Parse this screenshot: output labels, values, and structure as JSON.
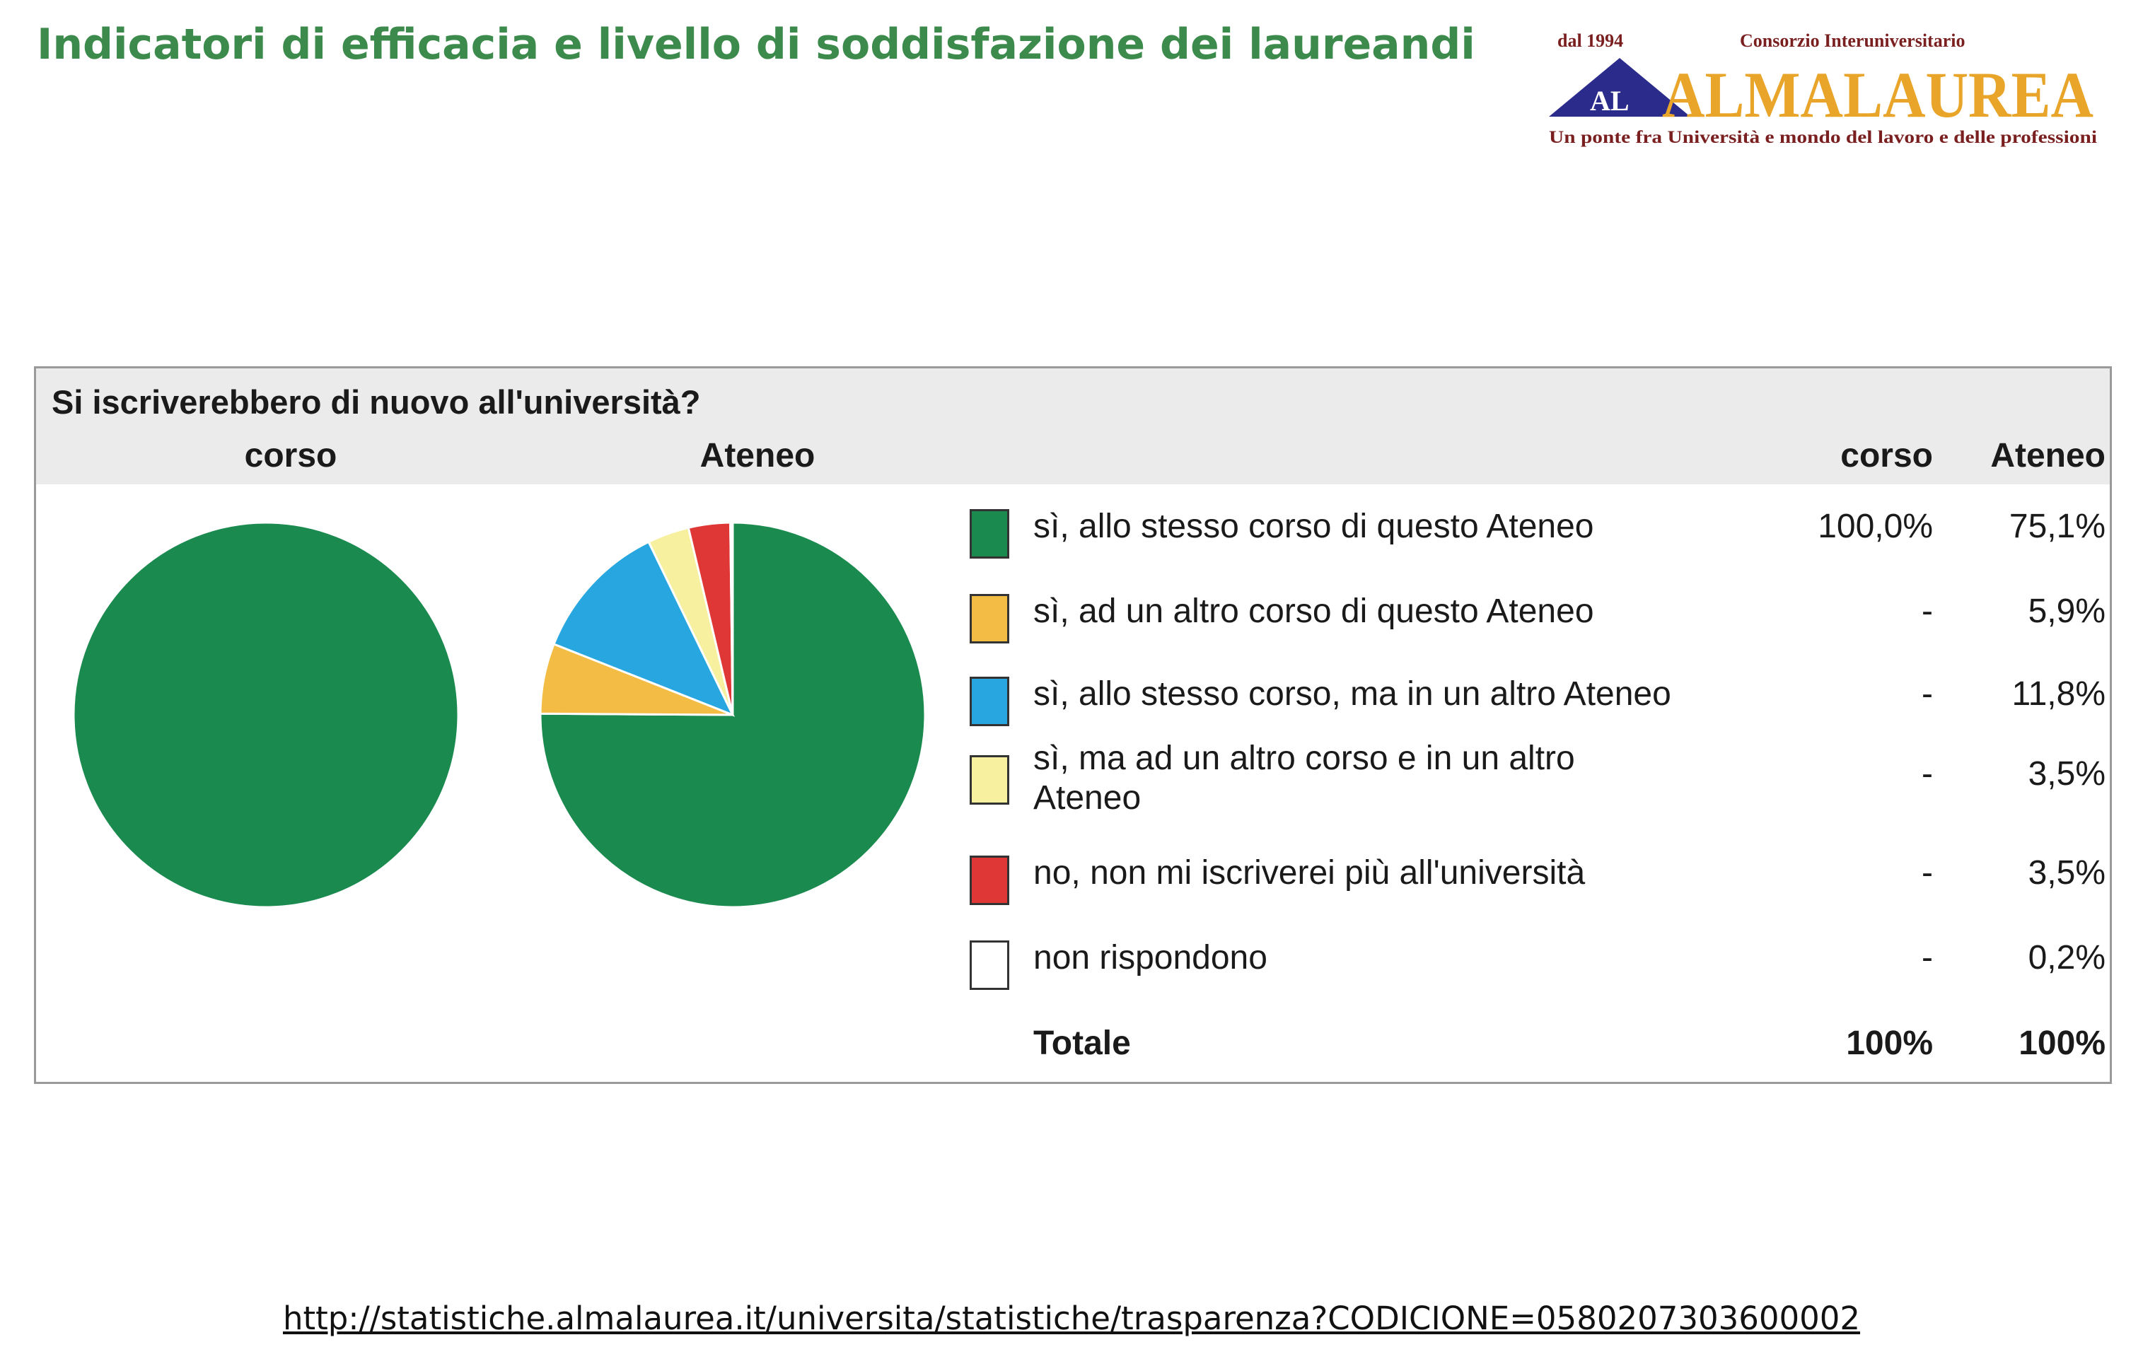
{
  "header": {
    "title": "Indicatori di efficacia e livello di soddisfazione dei laureandi"
  },
  "logo": {
    "since": "dal 1994",
    "consortium": "Consorzio Interuniversitario",
    "monogram": "AL",
    "name": "ALMALAUREA",
    "tagline": "Un ponte fra Università e mondo del lavoro e delle professioni",
    "colors": {
      "triangle": "#2b2b8c",
      "name": "#e8a52a",
      "text": "#7a1f1f"
    }
  },
  "footer": {
    "url": "http://statistiche.almalaurea.it/universita/statistiche/trasparenza?CODICIONE=0580207303600002"
  },
  "chart_data": {
    "type": "pie",
    "title": "Si iscriverebbero di nuovo all'università?",
    "pie_labels": [
      "corso",
      "Ateneo"
    ],
    "column_headers": [
      "corso",
      "Ateneo"
    ],
    "categories": [
      "sì, allo stesso corso di questo Ateneo",
      "sì, ad un altro corso di questo Ateneo",
      "sì, allo stesso corso, ma in un altro Ateneo",
      "sì, ma ad un altro corso e in un altro Ateneo",
      "no, non mi iscriverei più all'università",
      "non rispondono"
    ],
    "colors": [
      "#1a8a4f",
      "#f3bd45",
      "#27a6df",
      "#f7f09e",
      "#df3636",
      "#ffffff"
    ],
    "series": [
      {
        "name": "corso",
        "values": [
          100.0,
          0,
          0,
          0,
          0,
          0
        ],
        "display": [
          "100,0%",
          "-",
          "-",
          "-",
          "-",
          "-"
        ]
      },
      {
        "name": "Ateneo",
        "values": [
          75.1,
          5.9,
          11.8,
          3.5,
          3.5,
          0.2
        ],
        "display": [
          "75,1%",
          "5,9%",
          "11,8%",
          "3,5%",
          "3,5%",
          "0,2%"
        ]
      }
    ],
    "total_label": "Totale",
    "totals": [
      "100%",
      "100%"
    ]
  }
}
